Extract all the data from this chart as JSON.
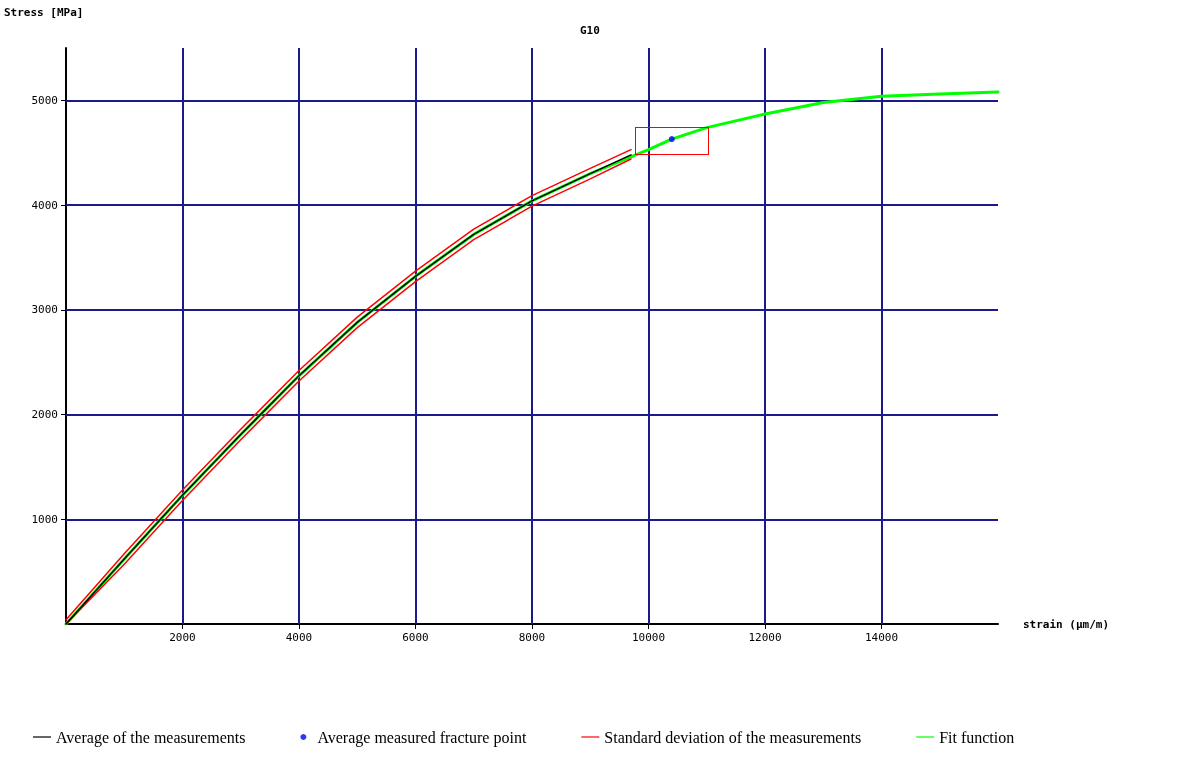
{
  "chart_data": {
    "type": "line",
    "title": "G10",
    "xlabel": "strain (µm/m)",
    "ylabel": "Stress [MPa]",
    "xlim": [
      0,
      16000
    ],
    "ylim": [
      0,
      5500
    ],
    "xticks": [
      2000,
      4000,
      6000,
      8000,
      10000,
      12000,
      14000
    ],
    "yticks": [
      1000,
      2000,
      3000,
      4000,
      5000
    ],
    "grid": true,
    "legend": "bottom",
    "series": [
      {
        "name": "Average of the measurements",
        "color": "#000000",
        "x": [
          0,
          1000,
          2000,
          3000,
          4000,
          5000,
          6000,
          7000,
          8000,
          9000,
          9700
        ],
        "values": [
          0,
          620,
          1230,
          1810,
          2370,
          2880,
          3320,
          3720,
          4040,
          4300,
          4480
        ]
      },
      {
        "name": "Average measured fracture point",
        "type": "scatter",
        "color": "#0000ff",
        "x": [
          10400
        ],
        "values": [
          4630
        ]
      },
      {
        "name": "Standard deviation of the measurements",
        "color": "#ff0000",
        "x": [
          0,
          1000,
          2000,
          3000,
          4000,
          5000,
          6000,
          7000,
          8000,
          9000,
          9700
        ],
        "values": [
          40,
          670,
          1280,
          1860,
          2420,
          2930,
          3370,
          3770,
          4090,
          4350,
          4530
        ]
      },
      {
        "color": "#ff0000",
        "x": [
          0,
          1000,
          2000,
          3000,
          4000,
          5000,
          6000,
          7000,
          8000,
          9000,
          9700
        ],
        "values": [
          0,
          570,
          1180,
          1760,
          2320,
          2830,
          3270,
          3670,
          3990,
          4250,
          4440
        ]
      },
      {
        "name": "Fit function",
        "color": "#00ff00",
        "x": [
          0,
          1000,
          2000,
          3000,
          4000,
          5000,
          6000,
          7000,
          8000,
          9000,
          10000,
          10400,
          11000,
          12000,
          13000,
          14000,
          15000,
          16000
        ],
        "values": [
          0,
          620,
          1230,
          1810,
          2370,
          2880,
          3320,
          3720,
          4040,
          4300,
          4530,
          4630,
          4740,
          4870,
          4980,
          5040,
          5060,
          5080
        ]
      }
    ]
  }
}
